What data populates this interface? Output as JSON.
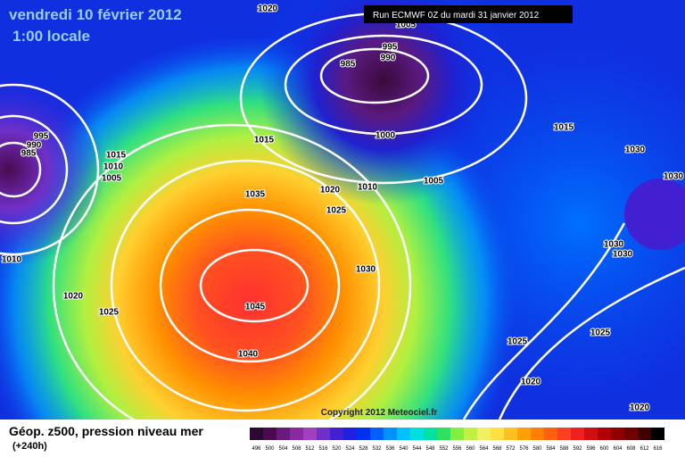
{
  "header": {
    "title": "vendredi 10 février 2012",
    "time": "1:00 locale",
    "run": "Run ECMWF 0Z du mardi 31 janvier 2012"
  },
  "isobar_labels": [
    1020,
    1005,
    995,
    990,
    985,
    1000,
    1015,
    1015,
    1030,
    1030,
    1020,
    1010,
    1005,
    1025,
    1035,
    1030,
    1045,
    1040,
    1030,
    1030,
    1025,
    1025,
    1020,
    1020,
    1020,
    1025,
    1010,
    995,
    990,
    985,
    1015,
    1010,
    1005
  ],
  "copyright": "Copyright 2012 Meteociel.fr",
  "legend": {
    "title": "Géop. z500, pression niveau mer",
    "lead": "(+240h)",
    "scale": [
      {
        "value": 496,
        "color": "#2a0a2e"
      },
      {
        "value": 500,
        "color": "#4a0a4e"
      },
      {
        "value": 504,
        "color": "#6a1a7a"
      },
      {
        "value": 508,
        "color": "#8a2aa0"
      },
      {
        "value": 512,
        "color": "#a040c0"
      },
      {
        "value": 516,
        "color": "#7030c8"
      },
      {
        "value": 520,
        "color": "#4020d0"
      },
      {
        "value": 524,
        "color": "#2020e0"
      },
      {
        "value": 528,
        "color": "#0030f0"
      },
      {
        "value": 532,
        "color": "#0060ff"
      },
      {
        "value": 536,
        "color": "#0090ff"
      },
      {
        "value": 540,
        "color": "#00c0ff"
      },
      {
        "value": 544,
        "color": "#00e0e0"
      },
      {
        "value": 548,
        "color": "#00e0a0"
      },
      {
        "value": 552,
        "color": "#30e060"
      },
      {
        "value": 556,
        "color": "#80f040"
      },
      {
        "value": 560,
        "color": "#c0f040"
      },
      {
        "value": 564,
        "color": "#f0f060"
      },
      {
        "value": 568,
        "color": "#ffe040"
      },
      {
        "value": 572,
        "color": "#ffc020"
      },
      {
        "value": 576,
        "color": "#ffa000"
      },
      {
        "value": 580,
        "color": "#ff8000"
      },
      {
        "value": 584,
        "color": "#ff6010"
      },
      {
        "value": 588,
        "color": "#ff4020"
      },
      {
        "value": 592,
        "color": "#f02020"
      },
      {
        "value": 596,
        "color": "#d01010"
      },
      {
        "value": 600,
        "color": "#b00000"
      },
      {
        "value": 604,
        "color": "#900000"
      },
      {
        "value": 608,
        "color": "#700000"
      },
      {
        "value": 612,
        "color": "#400000"
      },
      {
        "value": 616,
        "color": "#000000"
      }
    ]
  }
}
